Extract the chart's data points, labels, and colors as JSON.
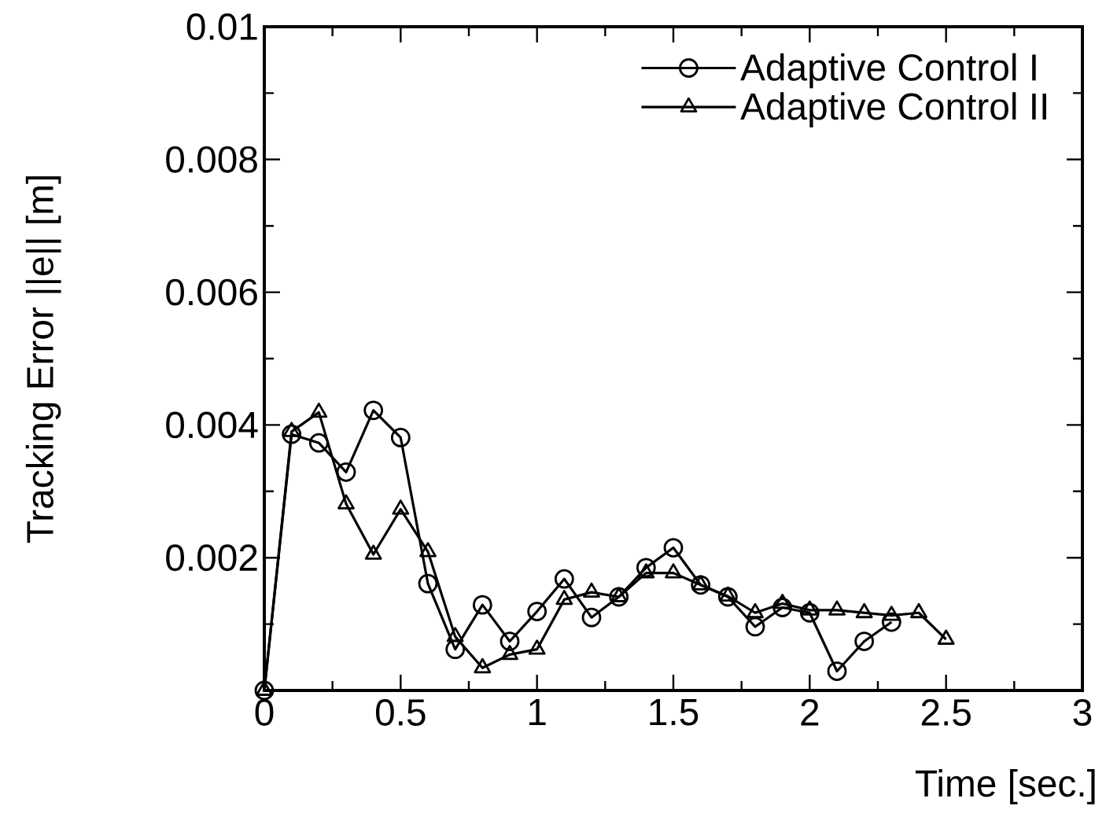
{
  "chart_data": {
    "type": "line",
    "xlabel": "Time [sec.]",
    "ylabel": "Tracking Error ||e|| [m]",
    "xlim": [
      0,
      3
    ],
    "ylim": [
      0,
      0.01
    ],
    "xticks": [
      0,
      0.5,
      1,
      1.5,
      2,
      2.5,
      3
    ],
    "yticks": [
      {
        "value": 0,
        "label": null
      },
      0.002,
      0.004,
      0.006,
      0.008,
      0.01
    ],
    "legend": "top right",
    "grid": false,
    "line_style": "solid",
    "series": [
      {
        "name": "Adaptive Control I",
        "color": "#000000",
        "marker": "circle",
        "x": [
          0,
          0.1,
          0.2,
          0.3,
          0.4,
          0.5,
          0.6,
          0.7,
          0.8,
          0.9,
          1.0,
          1.1,
          1.2,
          1.3,
          1.4,
          1.5,
          1.6,
          1.7,
          1.8,
          1.9,
          2.0,
          2.1,
          2.2,
          2.3
        ],
        "values": [
          0,
          0.00386,
          0.00373,
          0.00329,
          0.00422,
          0.00381,
          0.00161,
          0.00062,
          0.00129,
          0.00074,
          0.00119,
          0.00168,
          0.0011,
          0.00141,
          0.00185,
          0.00215,
          0.00159,
          0.00141,
          0.00096,
          0.00125,
          0.00117,
          0.00029,
          0.00074,
          0.00103
        ]
      },
      {
        "name": "Adaptive Control II",
        "color": "#000000",
        "marker": "triangle",
        "x": [
          0,
          0.1,
          0.2,
          0.3,
          0.4,
          0.5,
          0.6,
          0.7,
          0.8,
          0.9,
          1.0,
          1.1,
          1.2,
          1.3,
          1.4,
          1.5,
          1.6,
          1.7,
          1.8,
          1.9,
          2.0,
          2.1,
          2.2,
          2.3,
          2.4,
          2.5
        ],
        "values": [
          0,
          0.0039,
          0.00419,
          0.00281,
          0.00205,
          0.00273,
          0.00209,
          0.00081,
          0.00034,
          0.00054,
          0.00062,
          0.00137,
          0.00148,
          0.00141,
          0.00177,
          0.00177,
          0.00159,
          0.00142,
          0.00117,
          0.00131,
          0.00121,
          0.00121,
          0.00117,
          0.00113,
          0.00117,
          0.00077
        ]
      }
    ]
  }
}
